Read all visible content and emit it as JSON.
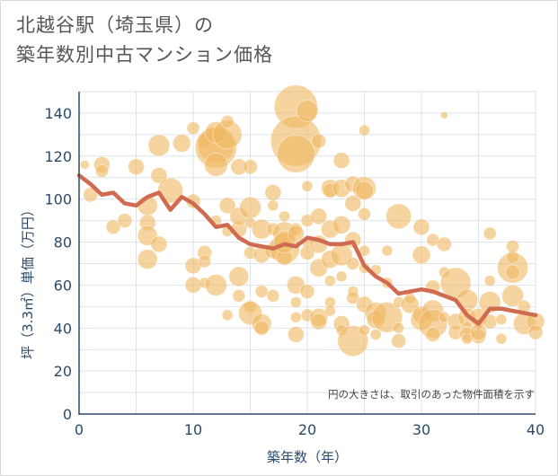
{
  "title_line1": "北越谷駅（埼玉県）の",
  "title_line2": "築年数別中古マンション価格",
  "note": "円の大きさは、取引のあった物件面積を示す",
  "colors": {
    "bubble": "#f0b860",
    "line": "#d06a50",
    "grid": "#dde3ea",
    "axis_text": "#2a4a6a"
  },
  "chart_data": {
    "type": "scatter",
    "xlabel": "築年数（年）",
    "ylabel": "坪（3.3㎡）単価（万円）",
    "xlim": [
      0,
      40
    ],
    "ylim": [
      0,
      150
    ],
    "xticks": [
      0,
      10,
      20,
      30,
      40
    ],
    "yticks": [
      0,
      20,
      40,
      60,
      80,
      100,
      120,
      140
    ],
    "grid": true,
    "bubbles": [
      [
        0.5,
        116,
        5
      ],
      [
        1,
        102,
        8
      ],
      [
        2,
        116,
        9
      ],
      [
        2,
        113,
        7
      ],
      [
        3,
        87,
        8
      ],
      [
        4,
        90,
        8
      ],
      [
        5,
        115,
        9
      ],
      [
        6,
        97,
        11
      ],
      [
        6,
        89,
        9
      ],
      [
        6,
        83,
        11
      ],
      [
        6,
        72,
        11
      ],
      [
        7,
        125,
        12
      ],
      [
        7,
        111,
        9
      ],
      [
        7,
        79,
        9
      ],
      [
        8,
        104,
        14
      ],
      [
        9,
        126,
        10
      ],
      [
        10,
        69,
        9
      ],
      [
        10,
        60,
        9
      ],
      [
        10,
        99,
        8
      ],
      [
        10,
        133,
        7
      ],
      [
        11,
        127,
        8
      ],
      [
        11,
        75,
        8
      ],
      [
        11,
        61,
        6
      ],
      [
        11,
        71,
        7
      ],
      [
        12,
        125,
        20
      ],
      [
        12,
        124,
        23
      ],
      [
        12,
        131,
        12
      ],
      [
        12,
        116,
        13
      ],
      [
        12,
        60,
        12
      ],
      [
        12,
        90,
        6
      ],
      [
        13,
        130,
        16
      ],
      [
        13,
        97,
        9
      ],
      [
        13,
        46,
        6
      ],
      [
        13,
        85,
        6
      ],
      [
        13,
        136,
        7
      ],
      [
        14,
        115,
        9
      ],
      [
        14,
        86,
        9
      ],
      [
        14,
        64,
        11
      ],
      [
        14,
        92,
        10
      ],
      [
        14,
        55,
        7
      ],
      [
        15,
        115,
        8
      ],
      [
        15,
        96,
        12
      ],
      [
        15,
        89,
        6
      ],
      [
        15,
        75,
        7
      ],
      [
        15,
        50,
        7
      ],
      [
        15,
        47,
        13
      ],
      [
        16,
        86,
        11
      ],
      [
        16,
        74,
        9
      ],
      [
        16,
        57,
        7
      ],
      [
        16,
        42,
        11
      ],
      [
        16,
        40,
        8
      ],
      [
        17,
        103,
        9
      ],
      [
        17,
        97,
        6
      ],
      [
        17,
        86,
        7
      ],
      [
        17,
        76,
        9
      ],
      [
        17,
        55,
        7
      ],
      [
        18,
        92,
        6
      ],
      [
        18,
        84,
        13
      ],
      [
        18,
        77,
        17
      ],
      [
        18,
        73,
        9
      ],
      [
        18,
        80,
        12
      ],
      [
        19,
        143,
        24
      ],
      [
        19,
        127,
        28
      ],
      [
        19,
        121,
        21
      ],
      [
        19,
        86,
        7
      ],
      [
        19,
        84,
        9
      ],
      [
        19,
        60,
        10
      ],
      [
        19,
        52,
        6
      ],
      [
        19,
        45,
        6
      ],
      [
        19,
        37,
        9
      ],
      [
        20,
        141,
        12
      ],
      [
        20,
        106,
        6
      ],
      [
        20,
        90,
        7
      ],
      [
        20,
        80,
        6
      ],
      [
        20,
        75,
        8
      ],
      [
        20,
        57,
        8
      ],
      [
        20,
        46,
        7
      ],
      [
        21,
        92,
        9
      ],
      [
        21,
        79,
        10
      ],
      [
        21,
        68,
        10
      ],
      [
        21,
        45,
        10
      ],
      [
        21,
        43,
        9
      ],
      [
        21,
        127,
        8
      ],
      [
        22,
        105,
        10
      ],
      [
        22,
        104,
        8
      ],
      [
        22,
        86,
        10
      ],
      [
        22,
        72,
        10
      ],
      [
        22,
        62,
        6
      ],
      [
        22,
        52,
        6
      ],
      [
        22,
        48,
        6
      ],
      [
        23,
        118,
        9
      ],
      [
        23,
        105,
        10
      ],
      [
        23,
        88,
        10
      ],
      [
        23,
        74,
        12
      ],
      [
        23,
        64,
        6
      ],
      [
        23,
        42,
        9
      ],
      [
        23,
        39,
        6
      ],
      [
        24,
        107,
        9
      ],
      [
        24,
        98,
        9
      ],
      [
        24,
        81,
        9
      ],
      [
        24,
        70,
        7
      ],
      [
        24,
        57,
        6
      ],
      [
        24,
        54,
        7
      ],
      [
        24,
        34,
        17
      ],
      [
        25,
        132,
        6
      ],
      [
        25,
        105,
        13
      ],
      [
        25,
        104,
        10
      ],
      [
        25,
        93,
        7
      ],
      [
        25,
        76,
        6
      ],
      [
        25,
        68,
        6
      ],
      [
        25,
        51,
        9
      ],
      [
        25,
        39,
        6
      ],
      [
        26,
        67,
        6
      ],
      [
        26,
        47,
        12
      ],
      [
        26,
        44,
        10
      ],
      [
        26,
        37,
        6
      ],
      [
        27,
        45,
        17
      ],
      [
        27,
        76,
        6
      ],
      [
        27,
        61,
        6
      ],
      [
        28,
        92,
        14
      ],
      [
        28,
        52,
        6
      ],
      [
        28,
        40,
        6
      ],
      [
        28,
        34,
        8
      ],
      [
        29,
        54,
        6
      ],
      [
        29,
        51,
        10
      ],
      [
        30,
        87,
        9
      ],
      [
        30,
        74,
        10
      ],
      [
        30,
        44,
        12
      ],
      [
        30,
        46,
        10
      ],
      [
        31,
        81,
        7
      ],
      [
        31,
        59,
        8
      ],
      [
        31,
        48,
        12
      ],
      [
        31,
        42,
        16
      ],
      [
        31,
        37,
        8
      ],
      [
        32,
        139,
        4
      ],
      [
        32,
        79,
        8
      ],
      [
        32,
        66,
        6
      ],
      [
        32,
        45,
        6
      ],
      [
        33,
        61,
        17
      ],
      [
        33,
        43,
        9
      ],
      [
        33,
        38,
        8
      ],
      [
        34,
        53,
        12
      ],
      [
        34,
        45,
        10
      ],
      [
        34,
        40,
        7
      ],
      [
        34,
        37,
        8
      ],
      [
        34,
        35,
        6
      ],
      [
        35,
        45,
        10
      ],
      [
        35,
        42,
        6
      ],
      [
        35,
        36,
        8
      ],
      [
        35,
        38,
        9
      ],
      [
        36,
        84,
        7
      ],
      [
        36,
        52,
        12
      ],
      [
        36,
        43,
        8
      ],
      [
        36,
        62,
        6
      ],
      [
        37,
        44,
        6
      ],
      [
        37,
        35,
        6
      ],
      [
        38,
        68,
        17
      ],
      [
        38,
        66,
        8
      ],
      [
        38,
        55,
        12
      ],
      [
        38,
        73,
        7
      ],
      [
        38,
        78,
        7
      ],
      [
        39,
        50,
        7
      ],
      [
        39,
        42,
        12
      ],
      [
        40,
        43,
        10
      ],
      [
        40,
        38,
        8
      ]
    ],
    "series": [
      {
        "x": [
          0,
          1,
          2,
          3,
          4,
          5,
          6,
          7,
          8,
          9,
          10,
          11,
          12,
          13,
          14,
          15,
          16,
          17,
          18,
          19,
          20,
          21,
          22,
          23,
          24,
          25,
          26,
          27,
          28,
          29,
          30,
          31,
          32,
          33,
          34,
          35,
          36,
          37,
          38,
          39,
          40
        ],
        "values": [
          111,
          107,
          102,
          103,
          98,
          97,
          101,
          103,
          95,
          101,
          98,
          93,
          87,
          88,
          82,
          79,
          78,
          77,
          79,
          78,
          82,
          81,
          79,
          79,
          80,
          69,
          64,
          61,
          56,
          57,
          58,
          57,
          55,
          53,
          46,
          42,
          49,
          49,
          48,
          47,
          46
        ]
      }
    ]
  }
}
